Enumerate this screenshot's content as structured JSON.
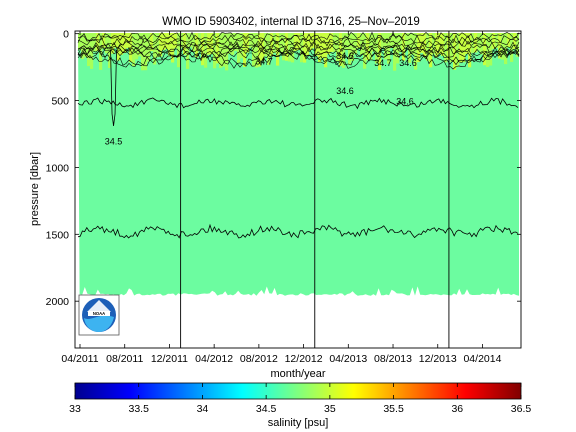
{
  "chart_data": {
    "type": "heatmap",
    "title": "WMO ID 5903402, internal ID 3716, 25–Nov–2019",
    "xlabel": "month/year",
    "ylabel": "pressure [dbar]",
    "x_tick_labels": [
      "04/2011",
      "08/2011",
      "12/2011",
      "04/2012",
      "08/2012",
      "12/2012",
      "04/2013",
      "08/2013",
      "12/2013",
      "04/2014"
    ],
    "x_range": [
      "04/2011",
      "07/2014"
    ],
    "y_ticks": [
      0,
      500,
      1000,
      1500,
      2000
    ],
    "y_tick_labels": [
      "0",
      "500",
      "1000",
      "1500",
      "2000"
    ],
    "ylim": [
      2350,
      -20
    ],
    "y_reversed": true,
    "year_boundaries": [
      "01/2012",
      "01/2013",
      "01/2014"
    ],
    "profile_max_depth": 1960,
    "colormap": "jet",
    "fill_color": "#6cfca0",
    "contour_labels": [
      "34.5",
      "34.6",
      "34.6",
      "34.7",
      "34.6",
      "34.7",
      "34.6"
    ],
    "contours": [
      {
        "level": 34.6,
        "approx_depth": 520
      },
      {
        "level": 34.5,
        "approx_depth": 1480
      }
    ],
    "colorbar": {
      "label": "salinity [psu]",
      "ticks": [
        "33",
        "33.5",
        "34",
        "34.5",
        "35",
        "35.5",
        "36",
        "36.5"
      ],
      "range": [
        33,
        36.5
      ]
    },
    "logo": "noaa-logo"
  }
}
